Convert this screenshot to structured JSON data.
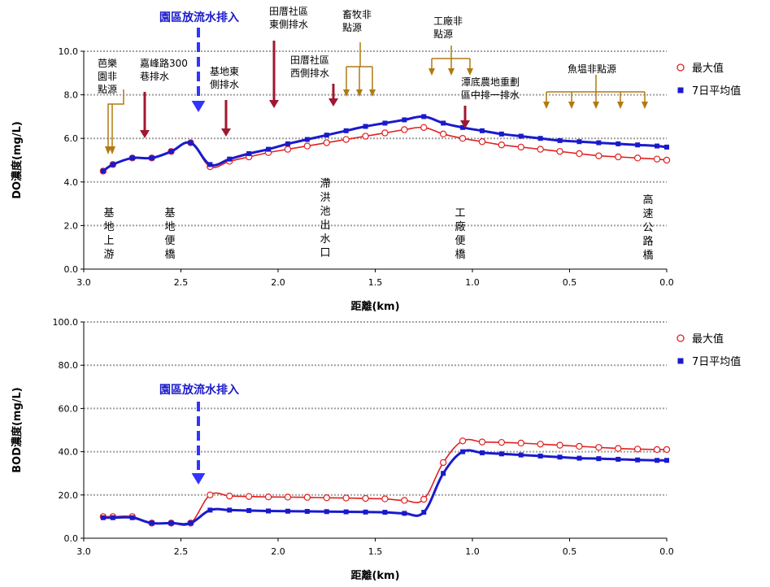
{
  "chart_data": [
    {
      "type": "line",
      "title": "",
      "xlabel": "距離(km)",
      "ylabel": "DO濃度(mg/L)",
      "xlim": [
        3.0,
        0.0
      ],
      "ylim": [
        0,
        10
      ],
      "x_ticks": [
        "3.0",
        "2.5",
        "2.0",
        "1.5",
        "1.0",
        "0.5",
        "0.0"
      ],
      "y_ticks": [
        "0.0",
        "2.0",
        "4.0",
        "6.0",
        "8.0",
        "10.0"
      ],
      "grid": true,
      "legend": "right",
      "series": [
        {
          "name": "最大值",
          "color": "#e02020",
          "marker": "open-circle",
          "x": [
            2.9,
            2.85,
            2.75,
            2.65,
            2.55,
            2.45,
            2.35,
            2.25,
            2.15,
            2.05,
            1.95,
            1.85,
            1.75,
            1.65,
            1.55,
            1.45,
            1.35,
            1.25,
            1.15,
            1.05,
            0.95,
            0.85,
            0.75,
            0.65,
            0.55,
            0.45,
            0.35,
            0.25,
            0.15,
            0.05,
            0.0
          ],
          "values": [
            4.5,
            4.8,
            5.1,
            5.1,
            5.4,
            5.8,
            4.7,
            4.95,
            5.15,
            5.35,
            5.5,
            5.65,
            5.8,
            5.95,
            6.1,
            6.25,
            6.4,
            6.5,
            6.2,
            6.0,
            5.85,
            5.7,
            5.6,
            5.5,
            5.4,
            5.3,
            5.2,
            5.15,
            5.1,
            5.05,
            5.0
          ]
        },
        {
          "name": "7日平均值",
          "color": "#1a1acc",
          "marker": "filled-square",
          "x": [
            2.9,
            2.85,
            2.75,
            2.65,
            2.55,
            2.45,
            2.35,
            2.25,
            2.15,
            2.05,
            1.95,
            1.85,
            1.75,
            1.65,
            1.55,
            1.45,
            1.35,
            1.25,
            1.15,
            1.05,
            0.95,
            0.85,
            0.75,
            0.65,
            0.55,
            0.45,
            0.35,
            0.25,
            0.15,
            0.05,
            0.0
          ],
          "values": [
            4.5,
            4.8,
            5.1,
            5.1,
            5.4,
            5.8,
            4.8,
            5.05,
            5.3,
            5.5,
            5.75,
            5.95,
            6.15,
            6.35,
            6.55,
            6.7,
            6.85,
            7.0,
            6.7,
            6.5,
            6.35,
            6.2,
            6.1,
            6.0,
            5.9,
            5.85,
            5.8,
            5.75,
            5.7,
            5.65,
            5.6
          ]
        }
      ],
      "annotations": {
        "blue": "園區放流水排入",
        "red": [
          "嘉峰路300\n巷排水",
          "基地東\n側排水",
          "田厝社區\n東側排水",
          "田厝社區\n西側排水",
          "潭底農地重劃\n區中排一排水"
        ],
        "brown": [
          "芭樂\n園非\n點源",
          "畜牧非\n點源",
          "工廠非\n點源",
          "魚塭非點源"
        ],
        "vertical_labels": [
          "基地上游",
          "基地便橋",
          "滯洪池出水口",
          "工廠便橋",
          "高速公路橋"
        ]
      }
    },
    {
      "type": "line",
      "title": "",
      "xlabel": "距離(km)",
      "ylabel": "BOD濃度(mg/L)",
      "xlim": [
        3.0,
        0.0
      ],
      "ylim": [
        0,
        100
      ],
      "x_ticks": [
        "3.0",
        "2.5",
        "2.0",
        "1.5",
        "1.0",
        "0.5",
        "0.0"
      ],
      "y_ticks": [
        "0.0",
        "20.0",
        "40.0",
        "60.0",
        "80.0",
        "100.0"
      ],
      "grid": true,
      "legend": "right",
      "series": [
        {
          "name": "最大值",
          "color": "#e02020",
          "marker": "open-circle",
          "x": [
            2.9,
            2.85,
            2.75,
            2.65,
            2.55,
            2.45,
            2.35,
            2.25,
            2.15,
            2.05,
            1.95,
            1.85,
            1.75,
            1.65,
            1.55,
            1.45,
            1.35,
            1.25,
            1.15,
            1.05,
            0.95,
            0.85,
            0.75,
            0.65,
            0.55,
            0.45,
            0.35,
            0.25,
            0.15,
            0.05,
            0.0
          ],
          "values": [
            10,
            10,
            10,
            7,
            7,
            7,
            20,
            19.5,
            19.3,
            19.1,
            19,
            18.9,
            18.7,
            18.6,
            18.4,
            18.2,
            17.5,
            18,
            35,
            45,
            44.5,
            44.3,
            44,
            43.5,
            43,
            42.5,
            42,
            41.5,
            41.2,
            41,
            41
          ]
        },
        {
          "name": "7日平均值",
          "color": "#1a1acc",
          "marker": "filled-square",
          "x": [
            2.9,
            2.85,
            2.75,
            2.65,
            2.55,
            2.45,
            2.35,
            2.25,
            2.15,
            2.05,
            1.95,
            1.85,
            1.75,
            1.65,
            1.55,
            1.45,
            1.35,
            1.25,
            1.15,
            1.05,
            0.95,
            0.85,
            0.75,
            0.65,
            0.55,
            0.45,
            0.35,
            0.25,
            0.15,
            0.05,
            0.0
          ],
          "values": [
            9.5,
            9.5,
            9.5,
            7,
            7,
            7,
            13,
            13,
            12.8,
            12.6,
            12.5,
            12.4,
            12.3,
            12.2,
            12.1,
            12,
            11.5,
            12,
            30,
            40,
            39.5,
            39,
            38.5,
            38,
            37.5,
            37,
            36.8,
            36.5,
            36.2,
            36,
            36
          ]
        }
      ],
      "annotations": {
        "blue": "園區放流水排入"
      }
    }
  ]
}
